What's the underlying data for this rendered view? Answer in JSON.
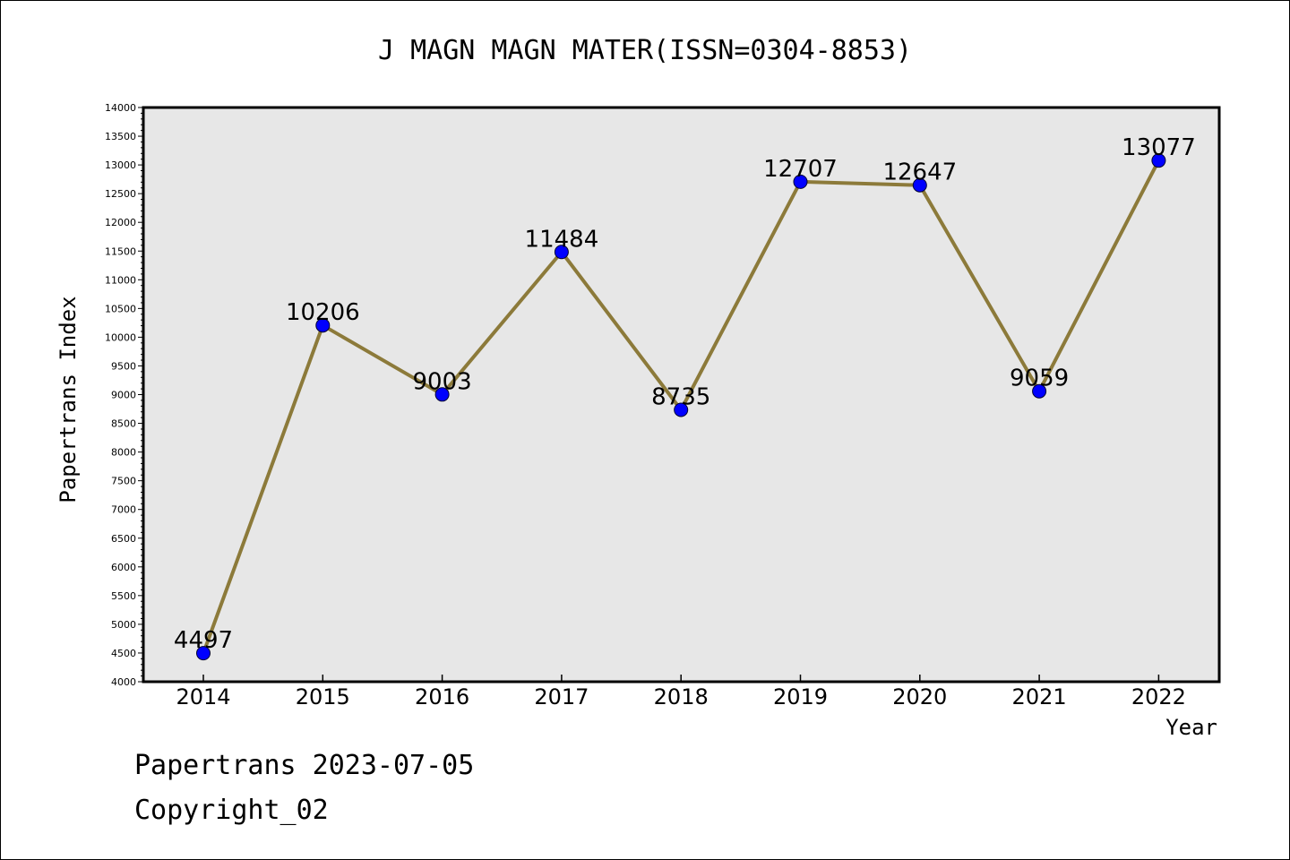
{
  "chart_data": {
    "type": "line",
    "title": "J MAGN MAGN MATER(ISSN=0304-8853)",
    "xlabel": "Year",
    "ylabel": "Papertrans Index",
    "categories": [
      "2014",
      "2015",
      "2016",
      "2017",
      "2018",
      "2019",
      "2020",
      "2021",
      "2022"
    ],
    "series": [
      {
        "values": [
          4497,
          10206,
          9003,
          11484,
          8735,
          12707,
          12647,
          9059,
          13077
        ]
      }
    ],
    "data_labels": [
      "4497",
      "10206",
      "9003",
      "11484",
      "8735",
      "12707",
      "12647",
      "9059",
      "13077"
    ],
    "ylim": [
      4000,
      14000
    ],
    "ytick_step": 500,
    "grid": false,
    "colors": {
      "line": "#8c7a3a",
      "marker": "#0000ff",
      "plot_bg": "#e7e7e7",
      "axes": "#000000"
    }
  },
  "footer": {
    "line1": "Papertrans 2023-07-05",
    "line2": "Copyright_02"
  }
}
